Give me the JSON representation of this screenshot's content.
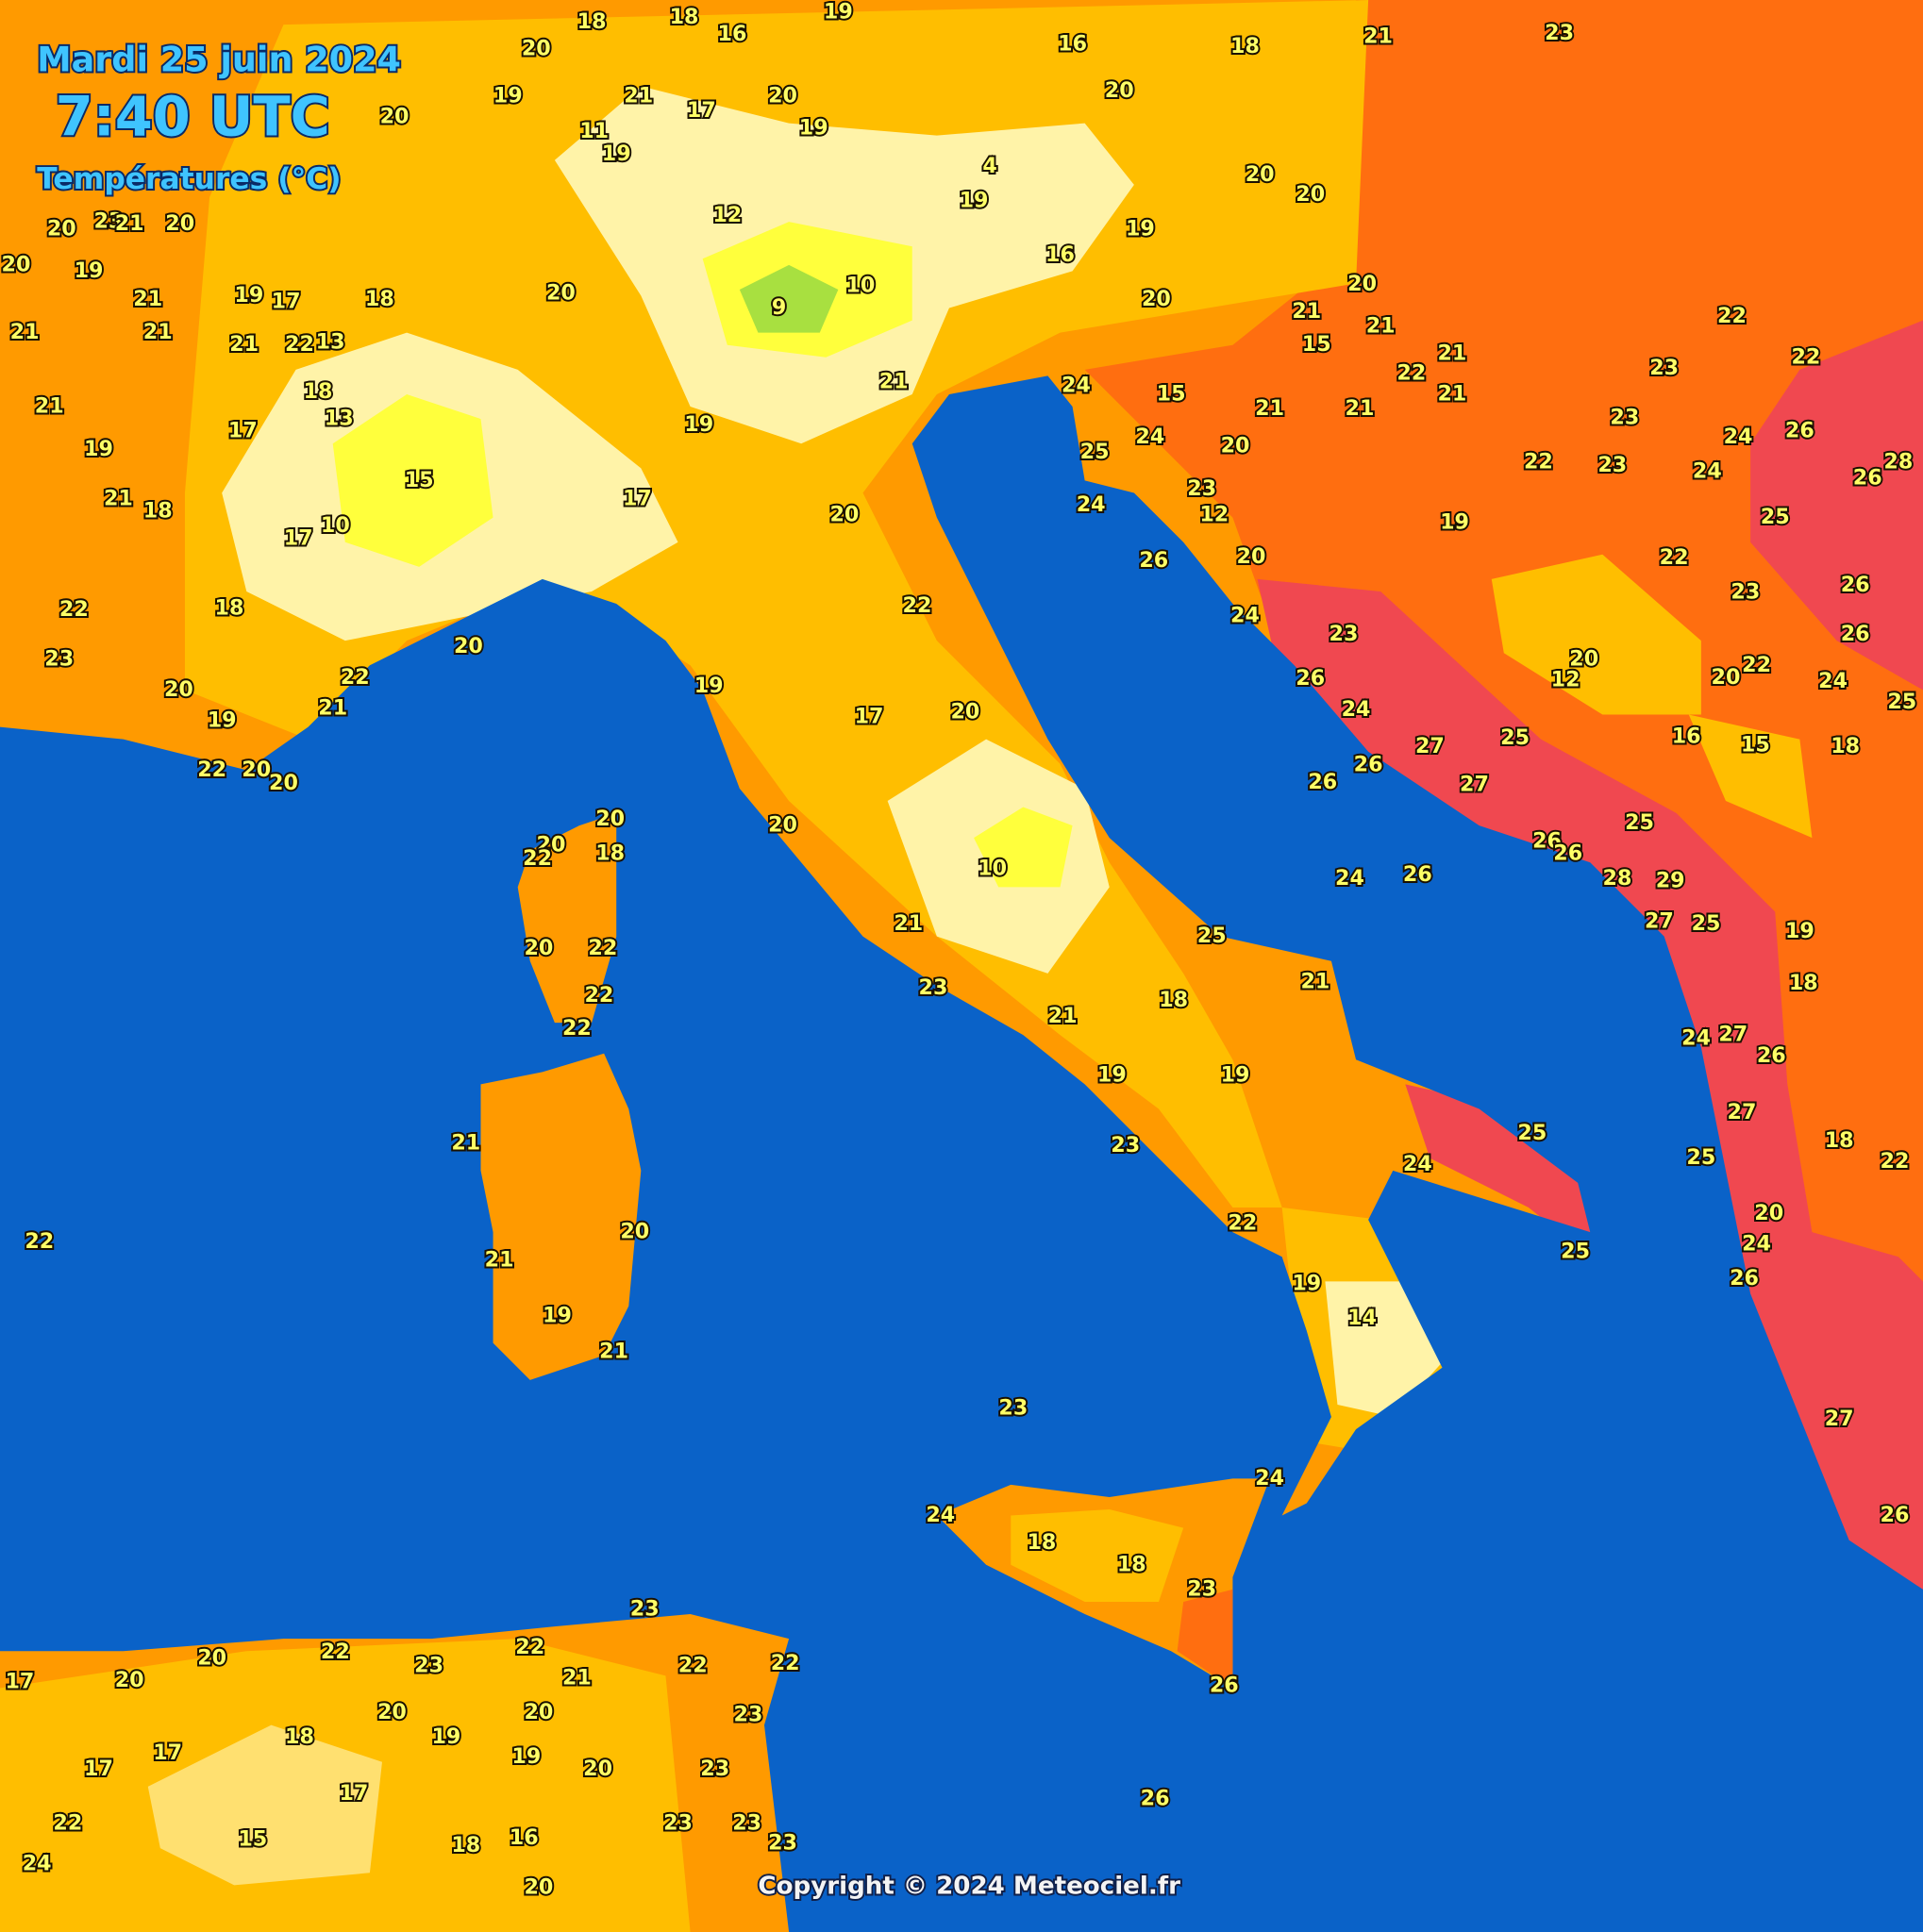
{
  "header": {
    "date": "Mardi 25 juin 2024",
    "time": "7:40 UTC",
    "variable": "Températures (°C)"
  },
  "footer": {
    "copyright": "Copyright © 2024 Meteociel.fr"
  },
  "legend_colors": {
    "sea": "#0a62c8",
    "t_9_12": "#a8e040",
    "t_13_15": "#ffff3c",
    "t_16_17": "#fff3a8",
    "t_18": "#ffe070",
    "t_19_21": "#ffbe00",
    "t_22_23": "#ff9a00",
    "t_24_25": "#ff6e10",
    "t_26_plus": "#f04850"
  },
  "temperatures": [
    20,
    23,
    21,
    20,
    18,
    17,
    19,
    20,
    19,
    21,
    21,
    21,
    21,
    22,
    13,
    18,
    13,
    17,
    19,
    21,
    15,
    21,
    18,
    10,
    17,
    18,
    20,
    22,
    23,
    20,
    22,
    21,
    19,
    22,
    20,
    20,
    18,
    18,
    16,
    19,
    16,
    18,
    20,
    20,
    19,
    20,
    21,
    17,
    20,
    19,
    11,
    19,
    4,
    19,
    12,
    16,
    19,
    20,
    20,
    21,
    23,
    20,
    9,
    10,
    21,
    19,
    17,
    20,
    20,
    20,
    21,
    21,
    15,
    22,
    21,
    21,
    21,
    21,
    15,
    24,
    25,
    24,
    20,
    23,
    24,
    12,
    26,
    20,
    22,
    24,
    23,
    26,
    24,
    27,
    26,
    26,
    25,
    27,
    19,
    22,
    23,
    22,
    22,
    23,
    23,
    24,
    26,
    24,
    26,
    28,
    25,
    22,
    23,
    26,
    26,
    20,
    12,
    22,
    20,
    24,
    25,
    16,
    15,
    18,
    25,
    26,
    26,
    28,
    29,
    24,
    26,
    27,
    25,
    19,
    18,
    24,
    27,
    26,
    27,
    25,
    18,
    22,
    20,
    24,
    26,
    27,
    26,
    19,
    17,
    20,
    20,
    10,
    21,
    25,
    21,
    23,
    21,
    18,
    19,
    19,
    23,
    25,
    24,
    22,
    25,
    19,
    14,
    24,
    23,
    20,
    18,
    20,
    22,
    20,
    22,
    22,
    22,
    21,
    20,
    21,
    19,
    21,
    22,
    24,
    18,
    18,
    23,
    26,
    23,
    20,
    22,
    23,
    22,
    21,
    22,
    22,
    17,
    20,
    20,
    20,
    23,
    18,
    19,
    17,
    17,
    19,
    20,
    23,
    17,
    22,
    23,
    23,
    23,
    15,
    18,
    16,
    24,
    20,
    26
  ]
}
